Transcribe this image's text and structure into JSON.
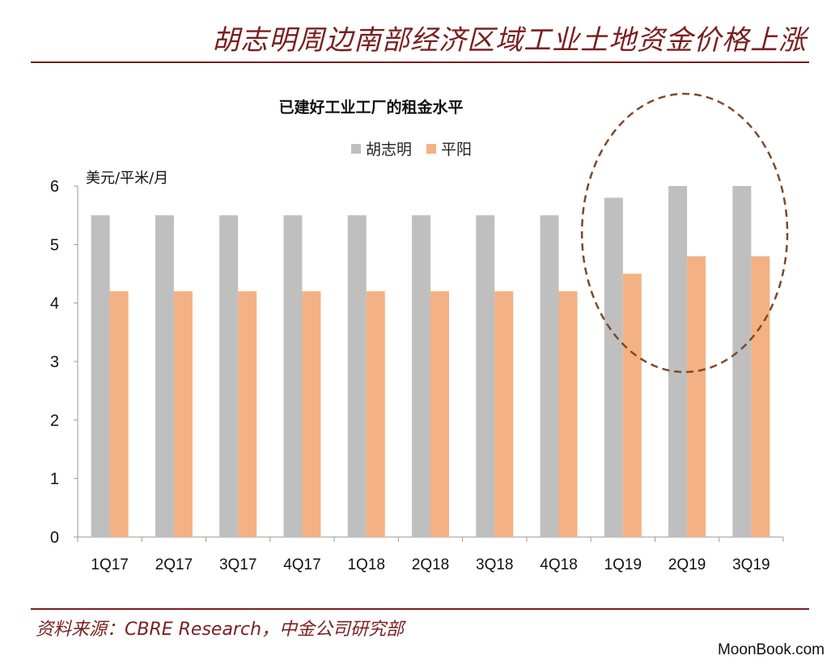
{
  "header": {
    "title": "胡志明周边南部经济区域工业土地资金价格上涨"
  },
  "footer": {
    "source": "资料来源：CBRE Research，中金公司研究部",
    "watermark": "MoonBook.com"
  },
  "colors": {
    "accent": "#7a1f1f",
    "series_hcm": "#bfbfbf",
    "series_binhduong": "#f4b183",
    "highlight_ellipse": "#7b4a2a"
  },
  "chart_data": {
    "type": "bar",
    "title": "已建好工业工厂的租金水平",
    "ylabel": "美元/平米/月",
    "xlabel": "",
    "ylim": [
      0,
      6
    ],
    "yticks": [
      0,
      1,
      2,
      3,
      4,
      5,
      6
    ],
    "grid": false,
    "legend": "top-center",
    "categories": [
      "1Q17",
      "2Q17",
      "3Q17",
      "4Q17",
      "1Q18",
      "2Q18",
      "3Q18",
      "4Q18",
      "1Q19",
      "2Q19",
      "3Q19"
    ],
    "series": [
      {
        "name": "胡志明",
        "color": "#bfbfbf",
        "values": [
          5.5,
          5.5,
          5.5,
          5.5,
          5.5,
          5.5,
          5.5,
          5.5,
          5.8,
          6.0,
          6.0
        ]
      },
      {
        "name": "平阳",
        "color": "#f4b183",
        "values": [
          4.2,
          4.2,
          4.2,
          4.2,
          4.2,
          4.2,
          4.2,
          4.2,
          4.5,
          4.8,
          4.8
        ]
      }
    ],
    "highlight_categories": [
      "1Q19",
      "2Q19",
      "3Q19"
    ]
  }
}
